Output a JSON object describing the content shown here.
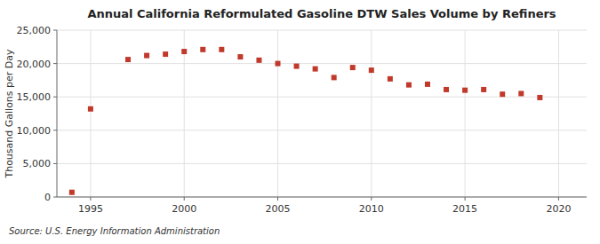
{
  "chart_data": {
    "type": "scatter",
    "title": "Annual California Reformulated Gasoline DTW Sales Volume by Refiners",
    "ylabel": "Thousand Gallons per Day",
    "source": "Source: U.S. Energy Information Administration",
    "x": [
      1994,
      1995,
      1997,
      1998,
      1999,
      2000,
      2001,
      2002,
      2003,
      2004,
      2005,
      2006,
      2007,
      2008,
      2009,
      2010,
      2011,
      2012,
      2013,
      2014,
      2015,
      2016,
      2017,
      2018,
      2019
    ],
    "values": [
      700,
      13200,
      20600,
      21200,
      21400,
      21800,
      22100,
      22100,
      21000,
      20500,
      20000,
      19600,
      19200,
      17900,
      19400,
      19000,
      17700,
      16800,
      16900,
      16100,
      16000,
      16100,
      15400,
      15500,
      14900
    ],
    "color": "#c0392b",
    "marker": "square",
    "xlim": [
      1993.2,
      2021.5
    ],
    "xticks": [
      1995,
      2000,
      2005,
      2010,
      2015,
      2020
    ],
    "ylim": [
      0,
      25000
    ],
    "yticks": [
      0,
      {
        "value": 5000,
        "label": "5,000"
      },
      {
        "value": 10000,
        "label": "10,000"
      },
      {
        "value": 15000,
        "label": "15,000"
      },
      {
        "value": 20000,
        "label": "20,000"
      },
      {
        "value": 25000,
        "label": "25,000"
      }
    ],
    "grid": true
  }
}
